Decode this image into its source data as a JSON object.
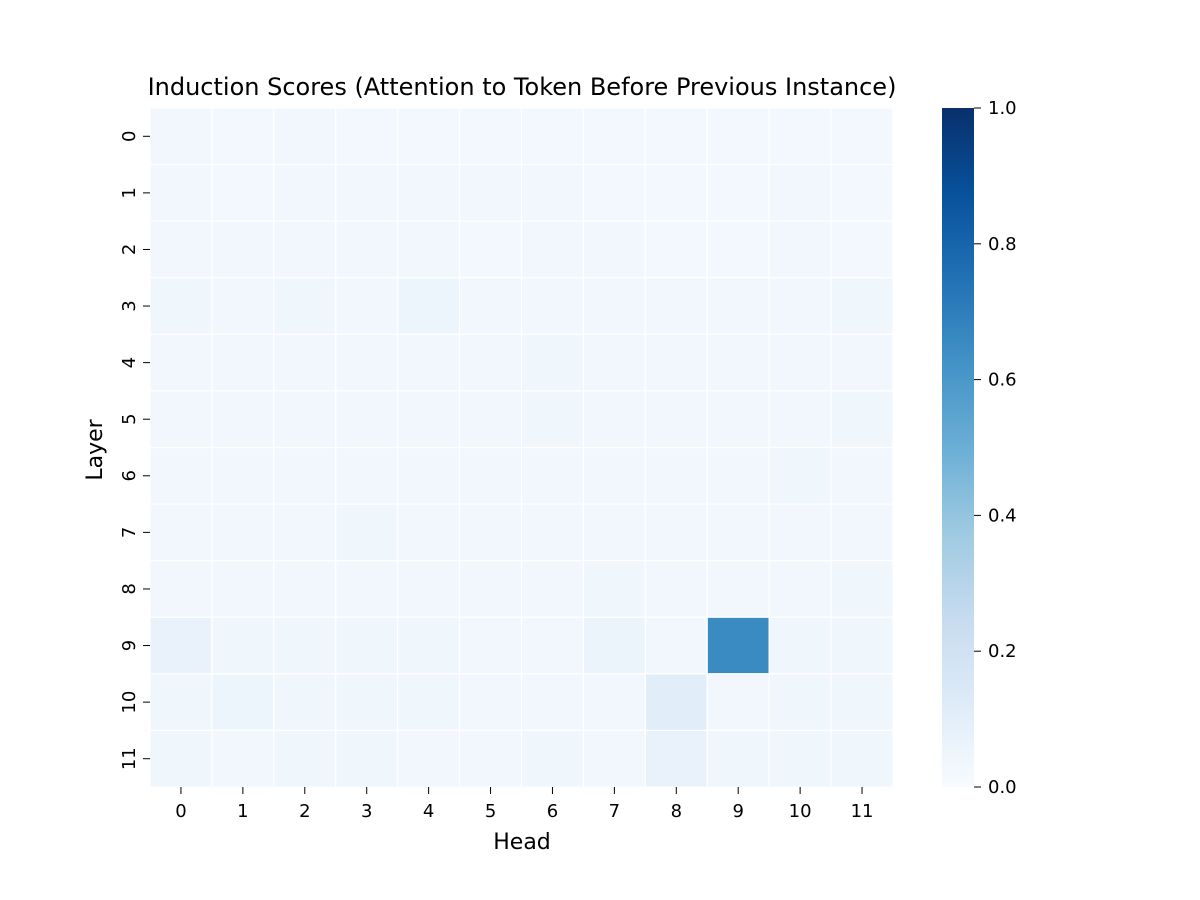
{
  "chart_data": {
    "type": "heatmap",
    "title": "Induction Scores (Attention to Token Before Previous Instance)",
    "xlabel": "Head",
    "ylabel": "Layer",
    "x_categories": [
      "0",
      "1",
      "2",
      "3",
      "4",
      "5",
      "6",
      "7",
      "8",
      "9",
      "10",
      "11"
    ],
    "y_categories": [
      "0",
      "1",
      "2",
      "3",
      "4",
      "5",
      "6",
      "7",
      "8",
      "9",
      "10",
      "11"
    ],
    "values": [
      [
        0.03,
        0.02,
        0.03,
        0.02,
        0.02,
        0.02,
        0.02,
        0.02,
        0.02,
        0.02,
        0.02,
        0.02
      ],
      [
        0.03,
        0.02,
        0.03,
        0.03,
        0.03,
        0.03,
        0.03,
        0.02,
        0.02,
        0.02,
        0.03,
        0.02
      ],
      [
        0.03,
        0.03,
        0.03,
        0.03,
        0.03,
        0.02,
        0.03,
        0.03,
        0.02,
        0.02,
        0.03,
        0.02
      ],
      [
        0.04,
        0.03,
        0.04,
        0.03,
        0.05,
        0.03,
        0.03,
        0.03,
        0.03,
        0.03,
        0.03,
        0.04
      ],
      [
        0.03,
        0.03,
        0.03,
        0.03,
        0.03,
        0.03,
        0.04,
        0.03,
        0.03,
        0.03,
        0.03,
        0.03
      ],
      [
        0.03,
        0.03,
        0.03,
        0.03,
        0.03,
        0.03,
        0.04,
        0.03,
        0.03,
        0.03,
        0.03,
        0.04
      ],
      [
        0.03,
        0.03,
        0.03,
        0.03,
        0.03,
        0.03,
        0.03,
        0.03,
        0.03,
        0.03,
        0.04,
        0.03
      ],
      [
        0.03,
        0.03,
        0.03,
        0.04,
        0.03,
        0.03,
        0.03,
        0.03,
        0.03,
        0.03,
        0.03,
        0.03
      ],
      [
        0.03,
        0.03,
        0.03,
        0.03,
        0.03,
        0.03,
        0.03,
        0.04,
        0.03,
        0.03,
        0.03,
        0.04
      ],
      [
        0.07,
        0.04,
        0.04,
        0.04,
        0.04,
        0.03,
        0.03,
        0.06,
        0.03,
        0.65,
        0.04,
        0.04
      ],
      [
        0.04,
        0.05,
        0.04,
        0.04,
        0.04,
        0.03,
        0.03,
        0.03,
        0.11,
        0.03,
        0.04,
        0.04
      ],
      [
        0.04,
        0.03,
        0.04,
        0.04,
        0.03,
        0.03,
        0.04,
        0.03,
        0.07,
        0.04,
        0.04,
        0.04
      ]
    ],
    "colorbar": {
      "colormap": "Blues",
      "vmin": 0.0,
      "vmax": 1.0,
      "tick_values": [
        0.0,
        0.2,
        0.4,
        0.6,
        0.8,
        1.0
      ],
      "tick_labels": [
        "0.0",
        "0.2",
        "0.4",
        "0.6",
        "0.8",
        "1.0"
      ]
    },
    "grid_line_color": "#ffffff",
    "colormap_stops": [
      "#f7fbff",
      "#deebf7",
      "#c6dbef",
      "#9ecae1",
      "#6baed6",
      "#4292c6",
      "#2171b5",
      "#08519c",
      "#08306b"
    ]
  }
}
